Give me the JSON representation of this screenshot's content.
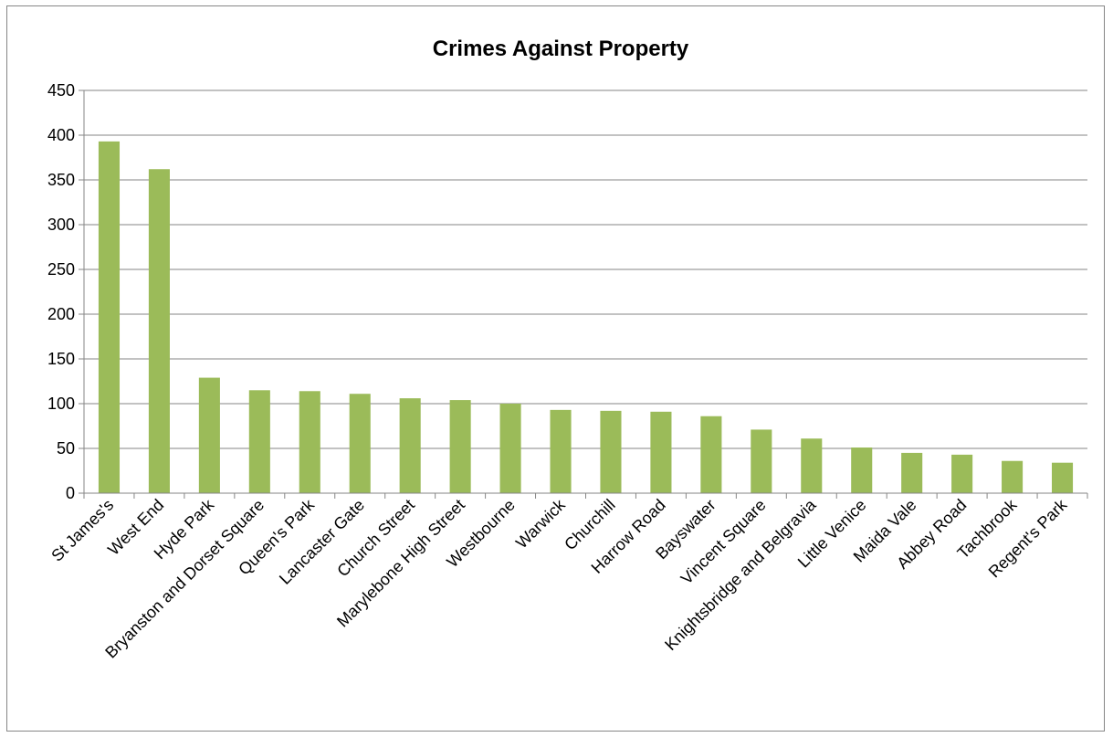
{
  "chart_data": {
    "type": "bar",
    "title": "Crimes Against Property",
    "xlabel": "",
    "ylabel": "",
    "ylim": [
      0,
      450
    ],
    "yticks": [
      0,
      50,
      100,
      150,
      200,
      250,
      300,
      350,
      400,
      450
    ],
    "grid": true,
    "legend": "none",
    "bar_color": "#9BBB59",
    "categories": [
      "St James's",
      "West End",
      "Hyde Park",
      "Bryanston and Dorset Square",
      "Queen's Park",
      "Lancaster Gate",
      "Church Street",
      "Marylebone High Street",
      "Westbourne",
      "Warwick",
      "Churchill",
      "Harrow Road",
      "Bayswater",
      "Vincent Square",
      "Knightsbridge and Belgravia",
      "Little Venice",
      "Maida Vale",
      "Abbey Road",
      "Tachbrook",
      "Regent's Park"
    ],
    "values": [
      393,
      362,
      129,
      115,
      114,
      111,
      106,
      104,
      100,
      93,
      92,
      91,
      86,
      71,
      61,
      51,
      45,
      43,
      36,
      34
    ]
  }
}
